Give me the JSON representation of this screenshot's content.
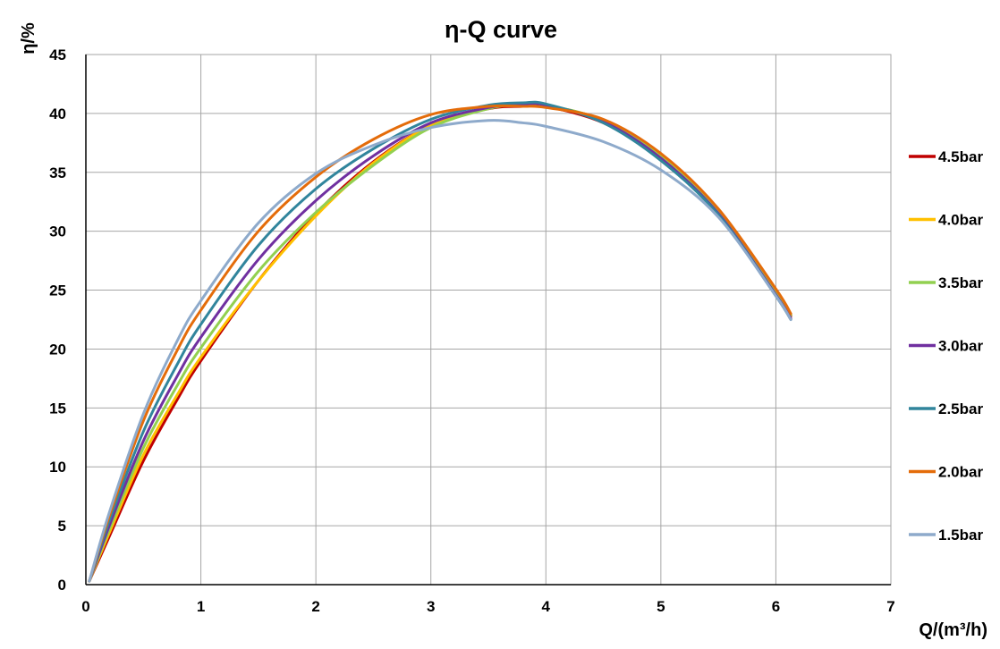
{
  "chart_data": {
    "type": "line",
    "title": "η-Q  curve",
    "xlabel": "Q/(m³/h)",
    "ylabel": "η/%",
    "xlim": [
      0,
      7
    ],
    "ylim": [
      0,
      45
    ],
    "xticks": [
      0,
      1,
      2,
      3,
      4,
      5,
      6,
      7
    ],
    "yticks": [
      0,
      5,
      10,
      15,
      20,
      25,
      30,
      35,
      40,
      45
    ],
    "grid": true,
    "legend": "right",
    "series": [
      {
        "name": "4.5bar",
        "color": "#c00000",
        "x": [
          0.03,
          0.2,
          0.5,
          0.8,
          1.0,
          1.5,
          2.0,
          2.5,
          3.0,
          3.5,
          3.8,
          4.0,
          4.5,
          5.0,
          5.5,
          6.0,
          6.13
        ],
        "y": [
          0.3,
          4.0,
          10.5,
          15.8,
          19.0,
          25.8,
          31.5,
          35.9,
          39.0,
          40.4,
          40.6,
          40.6,
          39.2,
          36.2,
          31.5,
          24.8,
          22.8
        ]
      },
      {
        "name": "4.0bar",
        "color": "#ffc000",
        "x": [
          0.03,
          0.2,
          0.5,
          0.8,
          1.0,
          1.5,
          2.0,
          2.5,
          3.0,
          3.5,
          3.8,
          4.0,
          4.5,
          5.0,
          5.5,
          6.0,
          6.13
        ],
        "y": [
          0.3,
          4.3,
          11.0,
          16.2,
          19.3,
          25.8,
          31.3,
          35.8,
          39.0,
          40.5,
          40.8,
          40.7,
          39.4,
          36.4,
          31.6,
          24.9,
          22.9
        ]
      },
      {
        "name": "3.5bar",
        "color": "#92d050",
        "x": [
          0.03,
          0.2,
          0.5,
          0.8,
          1.0,
          1.5,
          2.0,
          2.5,
          3.0,
          3.5,
          3.8,
          4.0,
          4.5,
          5.0,
          5.5,
          6.0,
          6.13
        ],
        "y": [
          0.3,
          4.6,
          11.6,
          17.0,
          20.1,
          26.6,
          31.6,
          35.6,
          38.8,
          40.4,
          40.8,
          40.7,
          39.4,
          36.3,
          31.6,
          24.9,
          22.9
        ]
      },
      {
        "name": "3.0bar",
        "color": "#7030a0",
        "x": [
          0.03,
          0.2,
          0.5,
          0.8,
          1.0,
          1.5,
          2.0,
          2.5,
          3.0,
          3.5,
          3.8,
          4.0,
          4.5,
          5.0,
          5.5,
          6.0,
          6.13
        ],
        "y": [
          0.3,
          4.9,
          12.2,
          17.8,
          21.0,
          27.6,
          32.6,
          36.4,
          39.2,
          40.5,
          40.8,
          40.7,
          39.3,
          36.2,
          31.5,
          24.6,
          22.6
        ]
      },
      {
        "name": "2.5bar",
        "color": "#31859c",
        "x": [
          0.03,
          0.2,
          0.5,
          0.8,
          1.0,
          1.5,
          2.0,
          2.5,
          3.0,
          3.5,
          3.8,
          4.0,
          4.5,
          5.0,
          5.5,
          6.0,
          6.13
        ],
        "y": [
          0.3,
          5.3,
          13.0,
          18.8,
          22.1,
          28.8,
          33.6,
          37.0,
          39.5,
          40.7,
          40.9,
          40.8,
          39.2,
          36.0,
          31.4,
          24.5,
          22.5
        ]
      },
      {
        "name": "2.0bar",
        "color": "#e46c0a",
        "x": [
          0.03,
          0.2,
          0.5,
          0.8,
          1.0,
          1.5,
          2.0,
          2.5,
          3.0,
          3.5,
          3.8,
          4.0,
          4.5,
          5.0,
          5.5,
          6.0,
          6.13
        ],
        "y": [
          0.3,
          5.7,
          13.9,
          20.0,
          23.3,
          30.0,
          34.6,
          37.8,
          39.9,
          40.6,
          40.6,
          40.5,
          39.5,
          36.6,
          31.9,
          25.1,
          23.0
        ]
      },
      {
        "name": "1.5bar",
        "color": "#8eaacb",
        "x": [
          0.03,
          0.2,
          0.5,
          0.8,
          1.0,
          1.5,
          2.0,
          2.5,
          3.0,
          3.5,
          3.8,
          4.0,
          4.5,
          5.0,
          5.5,
          6.0,
          6.13
        ],
        "y": [
          0.3,
          6.0,
          14.5,
          20.8,
          24.1,
          30.7,
          34.9,
          37.3,
          38.8,
          39.4,
          39.2,
          38.9,
          37.6,
          35.2,
          31.2,
          24.5,
          22.5
        ]
      }
    ]
  }
}
